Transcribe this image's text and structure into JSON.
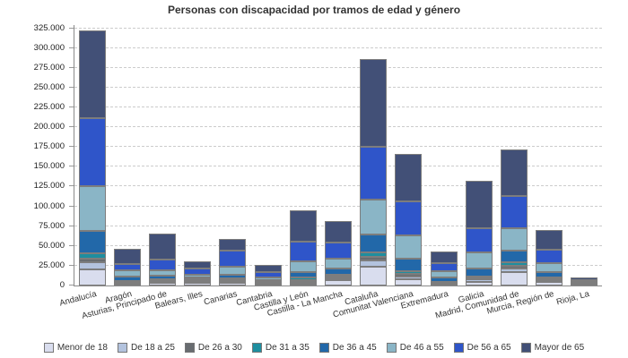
{
  "title": "Personas con discapacidad por tramos de edad y género",
  "chart_data": {
    "type": "bar",
    "stacked": true,
    "title": "Personas con discapacidad por tramos de edad y género",
    "xlabel": "",
    "ylabel": "",
    "ylim": [
      0,
      325000
    ],
    "ytick_step": 25000,
    "grid": "horizontal-dashed",
    "legend_position": "bottom",
    "categories": [
      "Andalucía",
      "Aragón",
      "Asturias, Principado de",
      "Balears, Illes",
      "Canarias",
      "Cantabria",
      "Castilla y León",
      "Castilla - La Mancha",
      "Cataluña",
      "Comunitat Valenciana",
      "Extremadura",
      "Galicia",
      "Madrid, Comunidad de",
      "Murcia, Región de",
      "Rioja, La"
    ],
    "series": [
      {
        "name": "Menor de 18",
        "color": "#d9ddee",
        "values": [
          20800,
          1500,
          3000,
          3000,
          3800,
          1600,
          2300,
          6400,
          24200,
          7600,
          1400,
          4900,
          17000,
          4500,
          800
        ]
      },
      {
        "name": "De 18 a 25",
        "color": "#b3c3de",
        "values": [
          8400,
          1200,
          1500,
          1200,
          1500,
          900,
          1700,
          2300,
          8000,
          3400,
          1100,
          2800,
          4500,
          1500,
          400
        ]
      },
      {
        "name": "De 26 a 30",
        "color": "#686c70",
        "values": [
          4900,
          1800,
          1900,
          1800,
          1500,
          1100,
          2800,
          2700,
          4500,
          3800,
          1200,
          2000,
          3800,
          1900,
          500
        ]
      },
      {
        "name": "De 31 a 35",
        "color": "#1e8e9f",
        "values": [
          6500,
          1700,
          1900,
          1500,
          1900,
          900,
          3400,
          2600,
          5700,
          3700,
          1100,
          1700,
          3800,
          1900,
          600
        ]
      },
      {
        "name": "De 36 a 45",
        "color": "#2268a9",
        "values": [
          28400,
          4900,
          3800,
          3000,
          4600,
          2600,
          6800,
          8000,
          22000,
          15200,
          5000,
          10200,
          15100,
          6800,
          1200
        ]
      },
      {
        "name": "De 46 a 55",
        "color": "#8ab5c6",
        "values": [
          56800,
          7600,
          7600,
          3300,
          10900,
          3000,
          13600,
          11400,
          43600,
          29600,
          8000,
          20100,
          28400,
          11700,
          1800
        ]
      },
      {
        "name": "De 56 a 65",
        "color": "#2f55c9",
        "values": [
          86000,
          8300,
          13300,
          7500,
          20100,
          6500,
          25000,
          20800,
          67000,
          42700,
          10200,
          31000,
          40900,
          16700,
          1500
        ]
      },
      {
        "name": "Mayor de 65",
        "color": "#425077",
        "values": [
          110900,
          19100,
          32900,
          9500,
          14000,
          9800,
          39800,
          27200,
          110600,
          60300,
          14700,
          59800,
          58300,
          25000,
          3500
        ]
      }
    ]
  },
  "colors": {
    "grid": "#cccccc",
    "axis": "#8a8a8a",
    "segment_border": "#7d7d7d",
    "text": "#333333",
    "background": "#ffffff"
  }
}
